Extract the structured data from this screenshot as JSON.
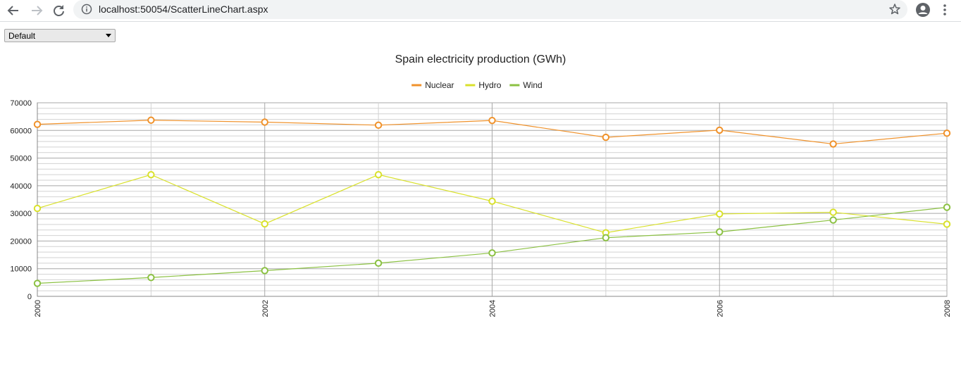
{
  "browser": {
    "url": "localhost:50054/ScatterLineChart.aspx"
  },
  "controls": {
    "theme_select_value": "Default"
  },
  "chart_data": {
    "type": "line",
    "title": "Spain electricity production (GWh)",
    "xlabel": "",
    "ylabel": "",
    "x": [
      2000,
      2001,
      2002,
      2003,
      2004,
      2005,
      2006,
      2007,
      2008
    ],
    "x_tick_labels": [
      "2000",
      "2002",
      "2004",
      "2006",
      "2008"
    ],
    "xlim": [
      2000,
      2008
    ],
    "ylim": [
      0,
      70000
    ],
    "y_tick_labels": [
      "0",
      "10000",
      "20000",
      "30000",
      "40000",
      "50000",
      "60000",
      "70000"
    ],
    "grid": true,
    "legend_position": "top-center",
    "series": [
      {
        "name": "Nuclear",
        "color": "#F0922B",
        "values": [
          62200,
          63700,
          63000,
          61900,
          63600,
          57500,
          60100,
          55100,
          59000
        ]
      },
      {
        "name": "Hydro",
        "color": "#D9E12B",
        "values": [
          31800,
          44000,
          26200,
          44000,
          34400,
          23000,
          29800,
          30400,
          26100
        ]
      },
      {
        "name": "Wind",
        "color": "#8BC142",
        "values": [
          4700,
          6800,
          9300,
          12000,
          15700,
          21200,
          23300,
          27600,
          32200
        ]
      }
    ]
  }
}
